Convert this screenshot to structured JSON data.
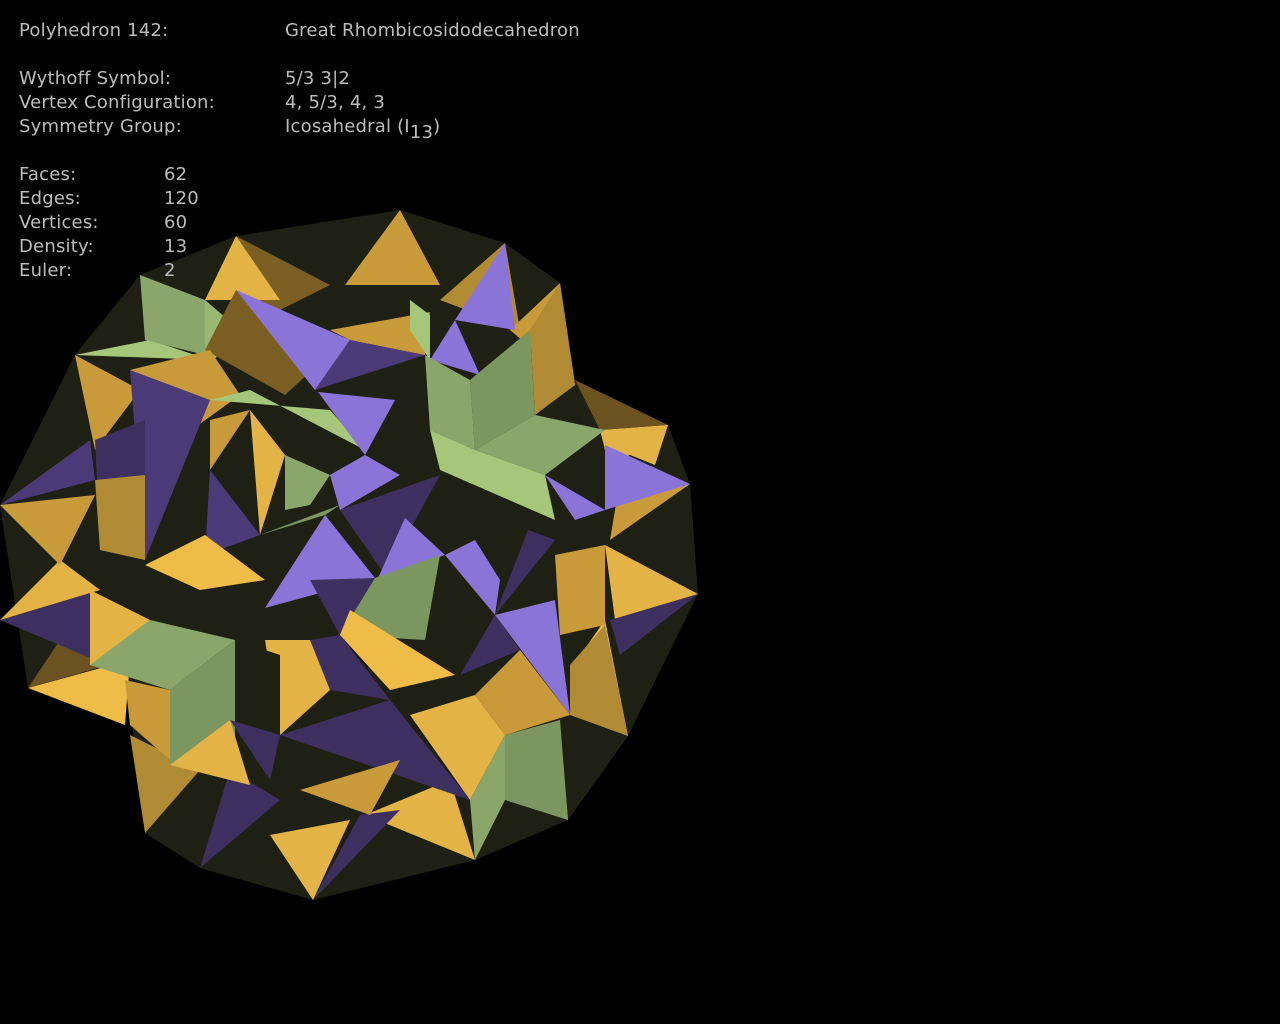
{
  "info": {
    "title_label": "Polyhedron 142:",
    "title_value": "Great Rhombicosidodecahedron",
    "wythoff_label": "Wythoff Symbol:",
    "wythoff_value": "5/3 3|2",
    "vertex_label": "Vertex Configuration:",
    "vertex_value": "4, 5/3, 4, 3",
    "symmetry_label": "Symmetry Group:",
    "symmetry_value": "Icosahedral (I",
    "symmetry_subscript": "13",
    "symmetry_close": ")"
  },
  "stats": {
    "faces_label": "Faces:",
    "faces_value": "62",
    "edges_label": "Edges:",
    "edges_value": "120",
    "vertices_label": "Vertices:",
    "vertices_value": "60",
    "density_label": "Density:",
    "density_value": "13",
    "euler_label": "Euler:",
    "euler_value": "2"
  },
  "colors": {
    "background": "#000000",
    "text": "#bdbdbd",
    "square_faces": "#8aa66a",
    "triangle_faces": "#8b74d8",
    "pentagram_faces": "#e0ad42",
    "shadow": "#1e2014"
  }
}
